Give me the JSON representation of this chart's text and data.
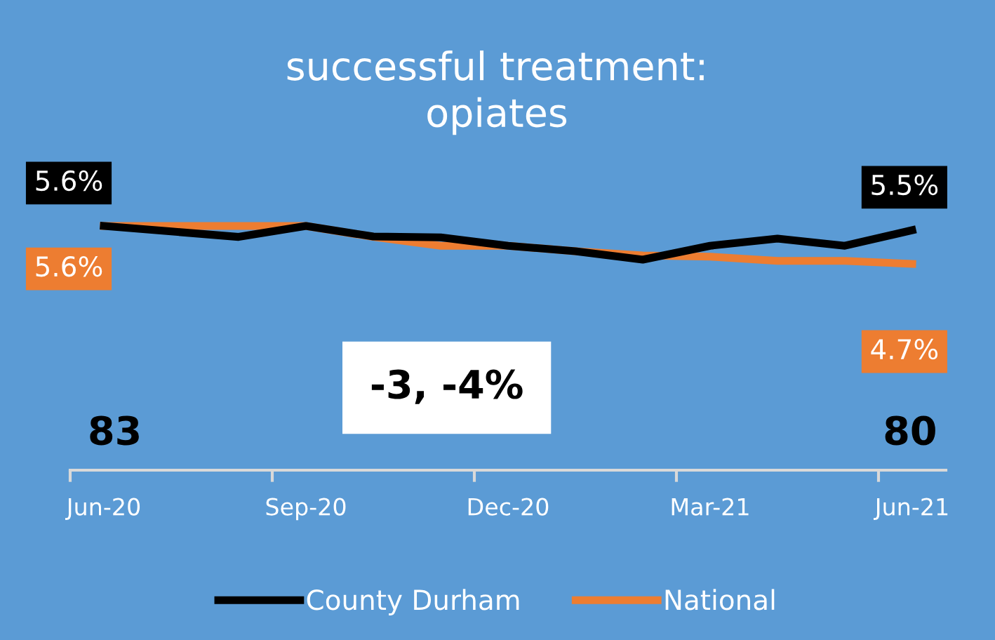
{
  "chart_data": {
    "type": "line",
    "title": "successful treatment:\nopiates",
    "categories": [
      "Jun-20",
      null,
      null,
      "Sep-20",
      null,
      null,
      "Dec-20",
      null,
      null,
      "Mar-21",
      null,
      null,
      "Jun-21"
    ],
    "series": [
      {
        "name": "County Durham",
        "color": "#000000",
        "values": [
          5.6,
          5.47,
          5.34,
          5.6,
          5.35,
          5.33,
          5.13,
          5.0,
          4.8,
          5.13,
          5.3,
          5.13,
          5.5
        ],
        "value_labels": [
          "5.6%",
          null,
          null,
          null,
          null,
          null,
          null,
          null,
          null,
          null,
          null,
          null,
          "5.5%"
        ]
      },
      {
        "name": "National",
        "color": "#ed7d31",
        "values": [
          5.6,
          5.6,
          5.6,
          5.6,
          5.34,
          5.13,
          5.13,
          5.0,
          4.9,
          4.87,
          4.77,
          4.77,
          4.7
        ],
        "value_labels": [
          "5.6%",
          null,
          null,
          null,
          null,
          null,
          null,
          null,
          null,
          null,
          null,
          null,
          "4.7%"
        ]
      }
    ],
    "annotations": [
      "83",
      "-3, -4%",
      "80"
    ],
    "legend": "bottom",
    "grid": false,
    "marker": "none",
    "line_style": "solid"
  }
}
